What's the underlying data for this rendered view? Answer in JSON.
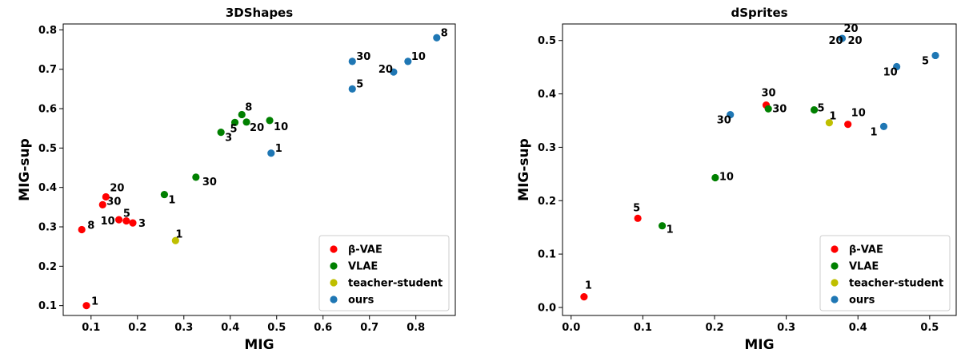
{
  "chart_data": [
    {
      "type": "scatter",
      "title": "3DShapes",
      "xlabel": "MIG",
      "ylabel": "MIG-sup",
      "xlim": [
        0.04,
        0.885
      ],
      "ylim": [
        0.075,
        0.815
      ],
      "xticks": [
        0.1,
        0.2,
        0.3,
        0.4,
        0.5,
        0.6,
        0.7,
        0.8
      ],
      "yticks": [
        0.1,
        0.2,
        0.3,
        0.4,
        0.5,
        0.6,
        0.7,
        0.8
      ],
      "grid": false,
      "legend_position": "bottom-right",
      "series": [
        {
          "name": "β-VAE",
          "color": "#ff0000",
          "points": [
            {
              "x": 0.09,
              "y": 0.1,
              "label": "1"
            },
            {
              "x": 0.08,
              "y": 0.293,
              "label": "8"
            },
            {
              "x": 0.16,
              "y": 0.318,
              "label": "10"
            },
            {
              "x": 0.176,
              "y": 0.315,
              "label": "5"
            },
            {
              "x": 0.19,
              "y": 0.31,
              "label": "3"
            },
            {
              "x": 0.125,
              "y": 0.356,
              "label": "30"
            },
            {
              "x": 0.132,
              "y": 0.376,
              "label": "20"
            }
          ]
        },
        {
          "name": "VLAE",
          "color": "#008000",
          "points": [
            {
              "x": 0.258,
              "y": 0.382,
              "label": "1"
            },
            {
              "x": 0.326,
              "y": 0.426,
              "label": "30"
            },
            {
              "x": 0.38,
              "y": 0.54,
              "label": "3"
            },
            {
              "x": 0.41,
              "y": 0.565,
              "label": "5"
            },
            {
              "x": 0.425,
              "y": 0.585,
              "label": "8"
            },
            {
              "x": 0.435,
              "y": 0.566,
              "label": "20"
            },
            {
              "x": 0.485,
              "y": 0.57,
              "label": "10"
            }
          ]
        },
        {
          "name": "teacher-student",
          "color": "#bfbf00",
          "points": [
            {
              "x": 0.282,
              "y": 0.265,
              "label": "1"
            }
          ]
        },
        {
          "name": "ours",
          "color": "#1f77b4",
          "points": [
            {
              "x": 0.488,
              "y": 0.487,
              "label": "1"
            },
            {
              "x": 0.663,
              "y": 0.65,
              "label": "5"
            },
            {
              "x": 0.663,
              "y": 0.72,
              "label": "30"
            },
            {
              "x": 0.752,
              "y": 0.693,
              "label": "20"
            },
            {
              "x": 0.783,
              "y": 0.72,
              "label": "10"
            },
            {
              "x": 0.845,
              "y": 0.78,
              "label": "8"
            }
          ]
        }
      ]
    },
    {
      "type": "scatter",
      "title": "dSprites",
      "xlabel": "MIG",
      "ylabel": "MIG-sup",
      "xlim": [
        -0.012,
        0.537
      ],
      "ylim": [
        -0.015,
        0.531
      ],
      "xticks": [
        0.0,
        0.1,
        0.2,
        0.3,
        0.4,
        0.5
      ],
      "yticks": [
        0.0,
        0.1,
        0.2,
        0.3,
        0.4,
        0.5
      ],
      "grid": false,
      "legend_position": "bottom-right",
      "series": [
        {
          "name": "β-VAE",
          "color": "#ff0000",
          "points": [
            {
              "x": 0.018,
              "y": 0.02,
              "label": "1"
            },
            {
              "x": 0.093,
              "y": 0.167,
              "label": "5"
            },
            {
              "x": 0.272,
              "y": 0.379,
              "label": "30"
            },
            {
              "x": 0.386,
              "y": 0.343,
              "label": "10"
            }
          ]
        },
        {
          "name": "VLAE",
          "color": "#008000",
          "points": [
            {
              "x": 0.127,
              "y": 0.153,
              "label": "1"
            },
            {
              "x": 0.201,
              "y": 0.243,
              "label": "10"
            },
            {
              "x": 0.275,
              "y": 0.372,
              "label": "30"
            },
            {
              "x": 0.339,
              "y": 0.37,
              "label": "5"
            }
          ]
        },
        {
          "name": "teacher-student",
          "color": "#bfbf00",
          "points": [
            {
              "x": 0.36,
              "y": 0.346,
              "label": "1"
            }
          ]
        },
        {
          "name": "ours",
          "color": "#1f77b4",
          "points": [
            {
              "x": 0.222,
              "y": 0.361,
              "label": "30"
            },
            {
              "x": 0.378,
              "y": 0.504,
              "label": "20"
            },
            {
              "x": 0.436,
              "y": 0.339,
              "label": "1"
            },
            {
              "x": 0.454,
              "y": 0.451,
              "label": "10"
            },
            {
              "x": 0.508,
              "y": 0.472,
              "label": "5"
            }
          ]
        }
      ]
    }
  ]
}
